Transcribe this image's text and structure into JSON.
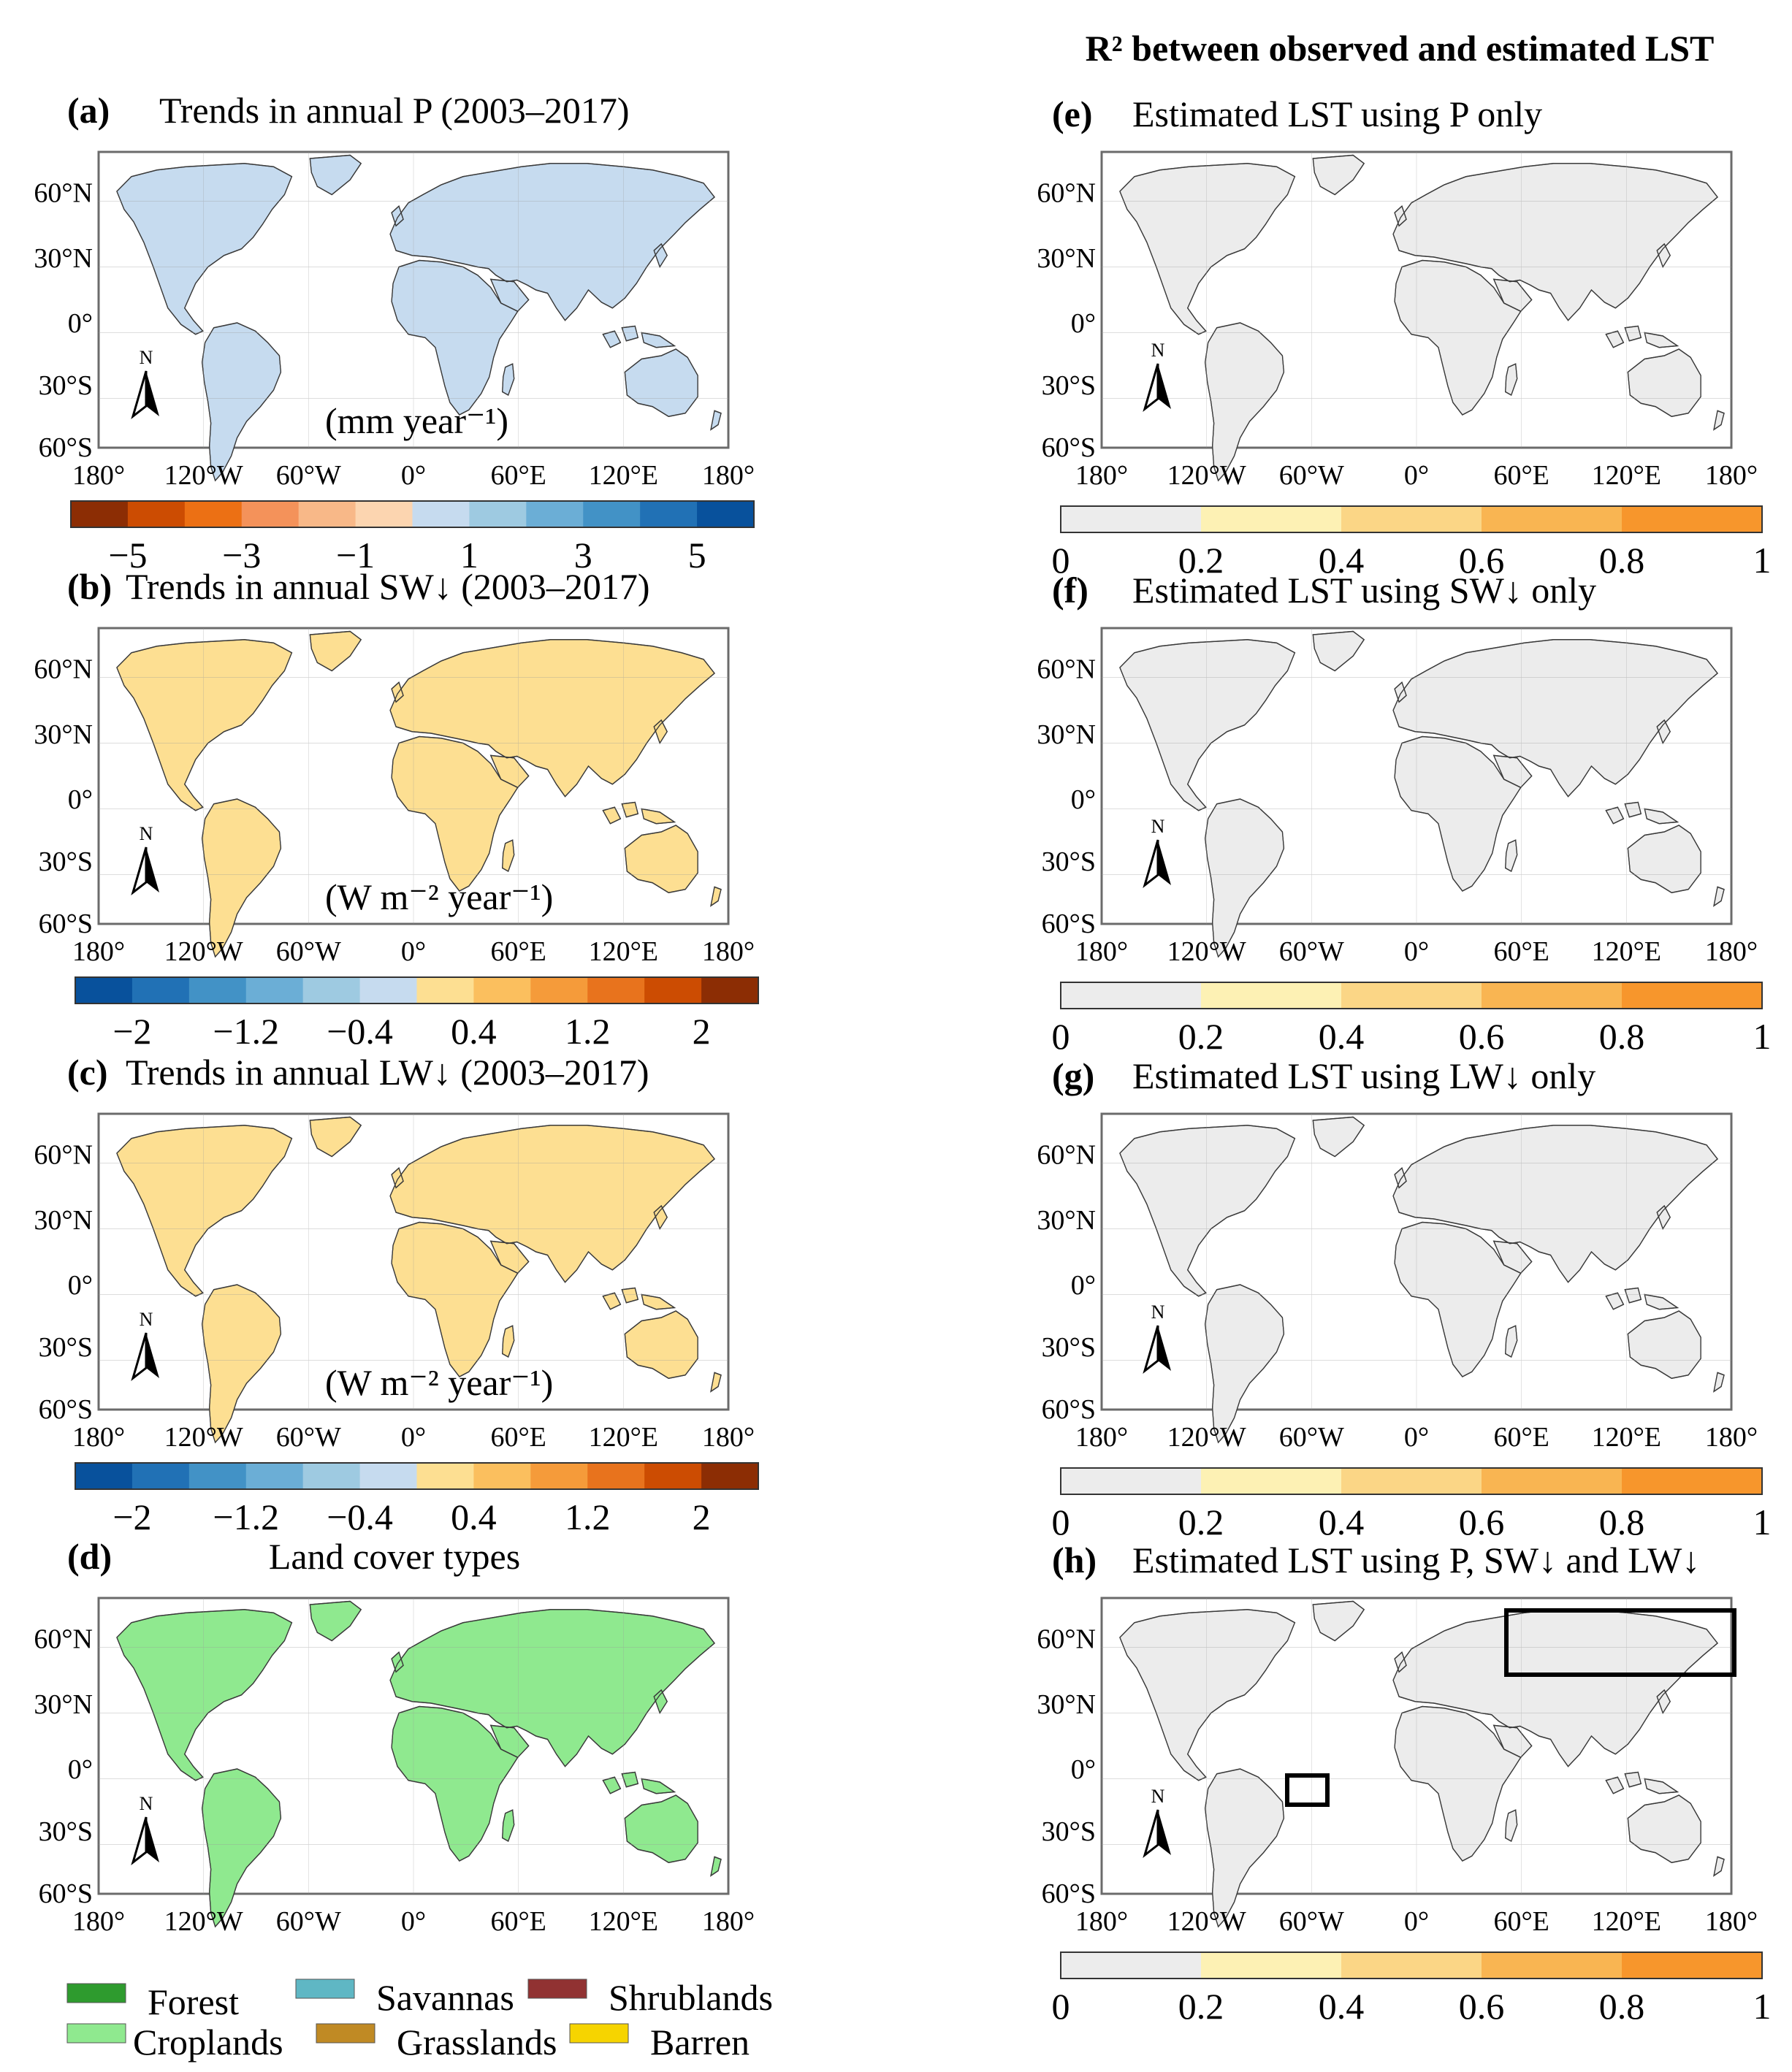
{
  "header": {
    "title": "R² between observed and estimated LST"
  },
  "left_panels": [
    {
      "letter": "(a)",
      "title": "Trends in annual P (2003–2017)",
      "unit": "(mm year⁻¹)",
      "ticks": [
        "−5",
        "−3",
        "−1",
        "1",
        "3",
        "5"
      ]
    },
    {
      "letter": "(b)",
      "title": "Trends in annual SW↓ (2003–2017)",
      "unit": "(W m⁻² year⁻¹)",
      "ticks": [
        "−2",
        "−1.2",
        "−0.4",
        "0.4",
        "1.2",
        "2"
      ]
    },
    {
      "letter": "(c)",
      "title": "Trends in annual LW↓ (2003–2017)",
      "unit": "(W m⁻² year⁻¹)",
      "ticks": [
        "−2",
        "−1.2",
        "−0.4",
        "0.4",
        "1.2",
        "2"
      ]
    },
    {
      "letter": "(d)",
      "title": "Land cover types"
    }
  ],
  "right_panels": [
    {
      "letter": "(e)",
      "title": "Estimated LST using P only"
    },
    {
      "letter": "(f)",
      "title": "Estimated LST using SW↓ only"
    },
    {
      "letter": "(g)",
      "title": "Estimated LST using LW↓ only"
    },
    {
      "letter": "(h)",
      "title": "Estimated LST using P, SW↓ and LW↓"
    }
  ],
  "r2_ticks": [
    "0",
    "0.2",
    "0.4",
    "0.6",
    "0.8",
    "1"
  ],
  "lat_ticks": [
    "60°N",
    "30°N",
    "0°",
    "30°S",
    "60°S"
  ],
  "lon_ticks": [
    "180°",
    "120°W",
    "60°W",
    "0°",
    "60°E",
    "120°E",
    "180°"
  ],
  "north_arrow_label": "N",
  "legend": [
    {
      "label": "Forest",
      "color": "#2e9b2e"
    },
    {
      "label": "Savannas",
      "color": "#5fb7c4"
    },
    {
      "label": "Shrublands",
      "color": "#913232"
    },
    {
      "label": "Croplands",
      "color": "#8fe98f"
    },
    {
      "label": "Grasslands",
      "color": "#c08a24"
    },
    {
      "label": "Barren",
      "color": "#f6d400"
    }
  ],
  "colors": {
    "p_scale": [
      "#8c2d04",
      "#cc4c02",
      "#ec7014",
      "#f4925a",
      "#f8b888",
      "#fcd5b0",
      "#c6dbef",
      "#9ecae1",
      "#6baed6",
      "#4292c6",
      "#2171b5",
      "#08519c"
    ],
    "rad_scale": [
      "#08519c",
      "#2171b5",
      "#4292c6",
      "#6baed6",
      "#9ecae1",
      "#c6dbef",
      "#fddf92",
      "#fbbf5e",
      "#f59b3a",
      "#e8731d",
      "#cc4c02",
      "#8c2d04"
    ],
    "r2_scale": [
      "#ececec",
      "#fdf1b4",
      "#fbd686",
      "#f9b552",
      "#f7962c"
    ],
    "land_base": "#e9e9e9",
    "frame": "#6b6b6b"
  }
}
